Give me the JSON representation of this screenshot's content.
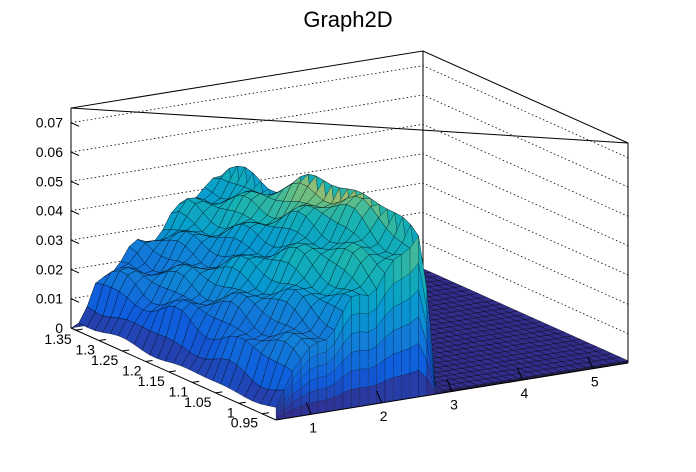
{
  "chart_data": {
    "type": "surface",
    "title": "Graph2D",
    "xlabel": "",
    "ylabel": "",
    "zlabel": "",
    "x_ticks": [
      "1",
      "2",
      "3",
      "4",
      "5"
    ],
    "y_ticks": [
      "0.95",
      "1",
      "1.05",
      "1.1",
      "1.15",
      "1.2",
      "1.25",
      "1.3",
      "1.35"
    ],
    "z_ticks": [
      "0",
      "0.01",
      "0.02",
      "0.03",
      "0.04",
      "0.05",
      "0.06",
      "0.07"
    ],
    "xlim": [
      0.5,
      5.5
    ],
    "ylim": [
      0.92,
      1.36
    ],
    "zlim": [
      0,
      0.075
    ],
    "grid": "z-dotted",
    "colormap": "parula",
    "colors": {
      "frame": "#000000",
      "mesh": "#000000",
      "low": "#352a87",
      "mid": "#1fa8a8",
      "high": "#f9fb0e"
    }
  }
}
